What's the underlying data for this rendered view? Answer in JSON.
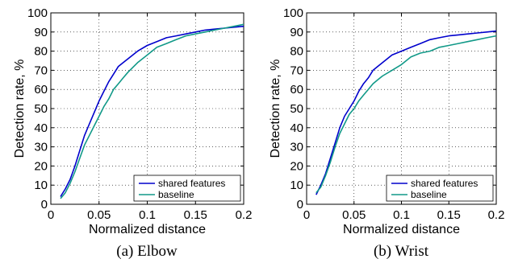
{
  "chart_data": [
    {
      "type": "line",
      "caption": "(a) Elbow",
      "xlabel": "Normalized distance",
      "ylabel": "Detection rate, %",
      "xlim": [
        0,
        0.2
      ],
      "ylim": [
        0,
        100
      ],
      "xticks": [
        0,
        0.05,
        0.1,
        0.15,
        0.2
      ],
      "xtick_labels": [
        "0",
        "0.05",
        "0.1",
        "0.15",
        "0.2"
      ],
      "yticks": [
        0,
        10,
        20,
        30,
        40,
        50,
        60,
        70,
        80,
        90,
        100
      ],
      "ytick_labels": [
        "0",
        "10",
        "20",
        "30",
        "40",
        "50",
        "60",
        "70",
        "80",
        "90",
        "100"
      ],
      "grid": true,
      "legend_position": "bottom-right",
      "series": [
        {
          "name": "shared features",
          "color": "#0000cc",
          "x": [
            0.01,
            0.015,
            0.02,
            0.025,
            0.03,
            0.035,
            0.04,
            0.045,
            0.05,
            0.055,
            0.06,
            0.065,
            0.07,
            0.075,
            0.08,
            0.09,
            0.1,
            0.11,
            0.12,
            0.13,
            0.14,
            0.15,
            0.16,
            0.17,
            0.18,
            0.19,
            0.2
          ],
          "y": [
            4,
            8,
            13,
            20,
            28,
            36,
            42,
            48,
            54,
            59,
            64,
            68,
            72,
            74,
            76,
            80,
            83,
            85,
            87,
            88,
            89,
            90,
            91,
            91.5,
            92,
            92.5,
            93
          ]
        },
        {
          "name": "baseline",
          "color": "#119988",
          "x": [
            0.01,
            0.015,
            0.02,
            0.025,
            0.03,
            0.035,
            0.04,
            0.045,
            0.05,
            0.055,
            0.06,
            0.065,
            0.07,
            0.075,
            0.08,
            0.09,
            0.1,
            0.11,
            0.12,
            0.13,
            0.14,
            0.15,
            0.16,
            0.17,
            0.18,
            0.19,
            0.2
          ],
          "y": [
            3,
            6,
            11,
            17,
            24,
            31,
            36,
            41,
            46,
            51,
            55,
            60,
            63,
            66,
            69,
            74,
            78,
            82,
            84,
            86,
            88,
            89,
            90,
            91,
            92,
            93,
            94
          ]
        }
      ]
    },
    {
      "type": "line",
      "caption": "(b) Wrist",
      "xlabel": "Normalized distance",
      "ylabel": "Detection rate, %",
      "xlim": [
        0,
        0.2
      ],
      "ylim": [
        0,
        100
      ],
      "xticks": [
        0,
        0.05,
        0.1,
        0.15,
        0.2
      ],
      "xtick_labels": [
        "0",
        "0.05",
        "0.1",
        "0.15",
        "0.2"
      ],
      "yticks": [
        0,
        10,
        20,
        30,
        40,
        50,
        60,
        70,
        80,
        90,
        100
      ],
      "ytick_labels": [
        "0",
        "10",
        "20",
        "30",
        "40",
        "50",
        "60",
        "70",
        "80",
        "90",
        "100"
      ],
      "grid": true,
      "legend_position": "bottom-right",
      "series": [
        {
          "name": "shared features",
          "color": "#0000cc",
          "x": [
            0.01,
            0.015,
            0.02,
            0.025,
            0.03,
            0.035,
            0.04,
            0.045,
            0.05,
            0.055,
            0.06,
            0.065,
            0.07,
            0.075,
            0.08,
            0.09,
            0.1,
            0.11,
            0.12,
            0.13,
            0.14,
            0.15,
            0.16,
            0.17,
            0.18,
            0.19,
            0.2
          ],
          "y": [
            5,
            10,
            16,
            24,
            32,
            40,
            46,
            50,
            54,
            59,
            63,
            66,
            70,
            72,
            74,
            78,
            80,
            82,
            84,
            86,
            87,
            88,
            88.5,
            89,
            89.5,
            90,
            90.5
          ]
        },
        {
          "name": "baseline",
          "color": "#119988",
          "x": [
            0.01,
            0.015,
            0.02,
            0.025,
            0.03,
            0.035,
            0.04,
            0.045,
            0.05,
            0.055,
            0.06,
            0.065,
            0.07,
            0.075,
            0.08,
            0.09,
            0.1,
            0.11,
            0.12,
            0.13,
            0.14,
            0.15,
            0.16,
            0.17,
            0.18,
            0.19,
            0.2
          ],
          "y": [
            6,
            9,
            15,
            22,
            30,
            37,
            42,
            47,
            50,
            54,
            57,
            60,
            63,
            65,
            67,
            70,
            73,
            77,
            79,
            80,
            82,
            83,
            84,
            85,
            86,
            87,
            88
          ]
        }
      ]
    }
  ]
}
